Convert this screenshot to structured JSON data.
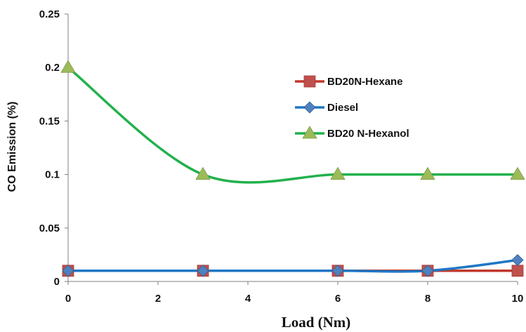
{
  "chart_data": {
    "type": "line",
    "title": "",
    "xlabel": "Load (Nm)",
    "ylabel": "CO Emission (%)",
    "xlim": [
      0,
      10
    ],
    "ylim": [
      0,
      0.25
    ],
    "xticks": [
      "0",
      "2",
      "4",
      "6",
      "8",
      "10"
    ],
    "yticks": [
      "0",
      "0.05",
      "0.1",
      "0.15",
      "0.2",
      "0.25"
    ],
    "grid": false,
    "legend_position": "right",
    "series": [
      {
        "name": "BD20N-Hexane",
        "color": "#c0392b",
        "marker": "square",
        "x": [
          0,
          3,
          6,
          8,
          10
        ],
        "y": [
          0.01,
          0.01,
          0.01,
          0.01,
          0.01
        ]
      },
      {
        "name": "Diesel",
        "color": "#1f77c4",
        "marker": "diamond",
        "x": [
          0,
          3,
          6,
          8,
          10
        ],
        "y": [
          0.01,
          0.01,
          0.01,
          0.01,
          0.02
        ]
      },
      {
        "name": "BD20 N-Hexanol",
        "color": "#22b14c",
        "marker": "triangle",
        "marker_color": "#9bbb59",
        "x": [
          0,
          3,
          6,
          8,
          10
        ],
        "y": [
          0.2,
          0.1,
          0.1,
          0.1,
          0.1
        ]
      }
    ]
  }
}
